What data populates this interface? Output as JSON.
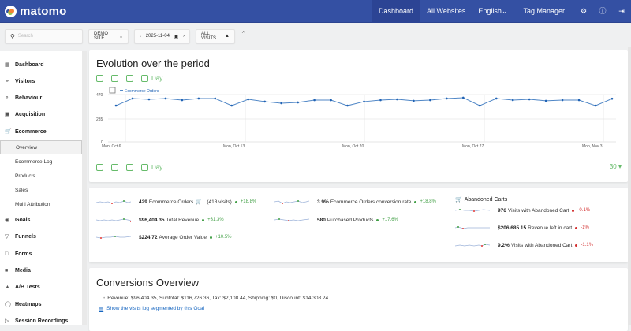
{
  "topbar": {
    "brand": "matomo",
    "nav": [
      "Dashboard",
      "All Websites",
      "English",
      "Tag Manager"
    ],
    "active": "Dashboard",
    "icons": [
      "gear-icon",
      "help-icon",
      "logout-icon"
    ]
  },
  "toolbar": {
    "search_placeholder": "Search",
    "site": "DEMO SITE",
    "date": "2025-11-04",
    "segment": "ALL VISITS"
  },
  "sidebar": {
    "categories": [
      {
        "label": "Dashboard",
        "icon": "dashboard-icon"
      },
      {
        "label": "Visitors",
        "icon": "visitors-icon"
      },
      {
        "label": "Behaviour",
        "icon": "behaviour-icon"
      },
      {
        "label": "Acquisition",
        "icon": "acquisition-icon"
      },
      {
        "label": "Ecommerce",
        "icon": "cart-icon"
      },
      {
        "label": "Goals",
        "icon": "goals-icon"
      },
      {
        "label": "Funnels",
        "icon": "funnel-icon"
      },
      {
        "label": "Forms",
        "icon": "forms-icon"
      },
      {
        "label": "Media",
        "icon": "media-icon"
      },
      {
        "label": "A/B Tests",
        "icon": "flask-icon"
      },
      {
        "label": "Heatmaps",
        "icon": "heatmap-icon"
      },
      {
        "label": "Session Recordings",
        "icon": "play-icon"
      }
    ],
    "ecommerce_sub": [
      "Overview",
      "Ecommerce Log",
      "Products",
      "Sales",
      "Multi Attribution"
    ],
    "active_sub": "Overview"
  },
  "evolution": {
    "title": "Evolution over the period",
    "period_label": "Day",
    "limit": "30",
    "legend": "Ecommerce Orders"
  },
  "chart_data": {
    "type": "line",
    "title": "Evolution over the period",
    "series": [
      {
        "name": "Ecommerce Orders",
        "values": [
          360,
          431,
          423,
          431,
          415,
          431,
          431,
          360,
          423,
          400,
          384,
          392,
          415,
          415,
          360,
          400,
          415,
          423,
          408,
          415,
          431,
          439,
          360,
          431,
          415,
          423,
          408,
          415,
          415,
          360,
          429
        ]
      }
    ],
    "x_ticks": [
      "Mon, Oct 6",
      "Mon, Oct 13",
      "Mon, Oct 20",
      "Mon, Oct 27",
      "Mon, Nov 3"
    ],
    "y_ticks": [
      0,
      235,
      470
    ],
    "ylim": [
      0,
      470
    ],
    "xlabel": "",
    "ylabel": "",
    "grid": true,
    "legend_position": "top-left"
  },
  "kpis": {
    "orders": {
      "value": "429",
      "label": "Ecommerce Orders",
      "extra": "(418 visits)",
      "change": "+18.8%"
    },
    "revenue": {
      "value": "$96,404.35",
      "label": "Total Revenue",
      "change": "+31.3%"
    },
    "aov": {
      "value": "$224.72",
      "label": "Average Order Value",
      "change": "+10.5%"
    },
    "conversion": {
      "value": "3.9%",
      "label": "Ecommerce Orders conversion rate",
      "change": "+18.8%"
    },
    "products": {
      "value": "580",
      "label": "Purchased Products",
      "change": "+17.6%"
    },
    "abandoned_title": "Abandoned Carts",
    "abandoned_visits": {
      "value": "976",
      "label": "Visits with Abandoned Cart",
      "change": "-0.1%"
    },
    "revenue_left": {
      "value": "$206,685.15",
      "label": "Revenue left in cart",
      "change": "-1%"
    },
    "abandoned_rate": {
      "value": "9.2%",
      "label": "Visits with Abandoned Cart",
      "change": "-1.1%"
    }
  },
  "conversions": {
    "title": "Conversions Overview",
    "summary": "Revenue: $96,404.35, Subtotal: $116,726.36, Tax: $2,108.44, Shipping: $0, Discount: $14,308.24",
    "link": "Show the visits log segmented by this Goal"
  }
}
